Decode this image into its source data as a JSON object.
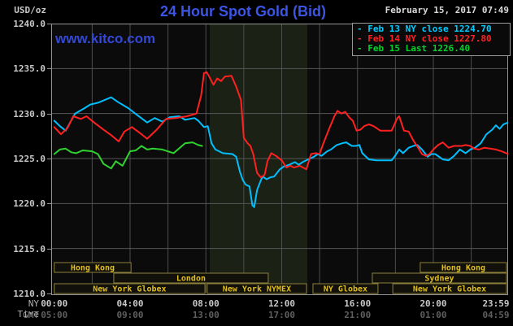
{
  "header": {
    "title": "24 Hour Spot Gold (Bid)",
    "datetime": "February 15, 2017 07:49",
    "watermark": "www.kitco.com",
    "unit_label": "USD/oz"
  },
  "axis_row_labels": {
    "ny_time": "NY Time",
    "gmt": "GMT"
  },
  "colors": {
    "background": "#000000",
    "plot_background": "#0b0b0b",
    "highlight_band": "#1b2114",
    "grid": "#4d4d4d",
    "border": "#969696",
    "title_blue": "#3b55e6",
    "session_border": "#8c7f3c",
    "session_text": "#e0be20",
    "axis_text": "#c8c8c8",
    "gmt_text": "#5f5f5f",
    "feb13_cyan": "#00bfff",
    "feb14_red": "#ff2020",
    "feb15_green": "#2fd32f"
  },
  "legend": {
    "entries": [
      {
        "dash": "-",
        "label": "Feb 13 NY close 1224.70",
        "color": "#00ccff"
      },
      {
        "dash": "-",
        "label": "Feb 14 NY close 1227.80",
        "color": "#ff2222"
      },
      {
        "dash": "-",
        "label": "Feb 15 Last 1226.40",
        "color": "#00d42a"
      }
    ]
  },
  "chart_data": {
    "type": "line",
    "title": "24 Hour Spot Gold (Bid)",
    "xlabel": "NY Time / GMT",
    "ylabel": "USD/oz",
    "ylim": [
      1210.0,
      1240.0
    ],
    "grid": true,
    "legend_position": "top-right",
    "y_axis": {
      "ticks": [
        "1240.0",
        "1235.0",
        "1230.0",
        "1225.0",
        "1220.0",
        "1215.0",
        "1210.0"
      ]
    },
    "x_axis": {
      "ticks": [
        {
          "hour": 0,
          "ny": "00:00",
          "gmt": "05:00"
        },
        {
          "hour": 4,
          "ny": "04:00",
          "gmt": "09:00"
        },
        {
          "hour": 8,
          "ny": "08:00",
          "gmt": "13:00"
        },
        {
          "hour": 12,
          "ny": "12:00",
          "gmt": "17:00"
        },
        {
          "hour": 16,
          "ny": "16:00",
          "gmt": "21:00"
        },
        {
          "hour": 20,
          "ny": "20:00",
          "gmt": "01:00"
        },
        {
          "hour": 23.98,
          "ny": "23:59",
          "gmt": "04:59"
        }
      ]
    },
    "highlight_band_hours": [
      8.2,
      13.35
    ],
    "sessions": [
      {
        "row": 0,
        "label": "Hong Kong",
        "start_hour": 0,
        "end_hour": 4.05
      },
      {
        "row": 0,
        "label": "Hong Kong",
        "start_hour": 19.31,
        "end_hour": 23.86
      },
      {
        "row": 1,
        "label": "London",
        "start_hour": 3.14,
        "end_hour": 11.29
      },
      {
        "row": 1,
        "label": "Sydney",
        "start_hour": 16.78,
        "end_hour": 23.86
      },
      {
        "row": 2,
        "label": "New York Globex",
        "start_hour": 0,
        "end_hour": 7.95
      },
      {
        "row": 2,
        "label": "New York NYMEX",
        "start_hour": 8.07,
        "end_hour": 13.31
      },
      {
        "row": 2,
        "label": "NY Globex",
        "start_hour": 13.65,
        "end_hour": 17.08
      },
      {
        "row": 2,
        "label": "New York Globex",
        "start_hour": 17.86,
        "end_hour": 23.86
      }
    ],
    "series": [
      {
        "name": "Feb 13",
        "legend": "Feb 13 NY close 1224.70",
        "close": 1224.7,
        "color": "#00bfff",
        "points": [
          [
            0,
            1229.2
          ],
          [
            0.3,
            1228.6
          ],
          [
            0.6,
            1228.1
          ],
          [
            1.1,
            1230.0
          ],
          [
            1.6,
            1230.6
          ],
          [
            1.9,
            1231.0
          ],
          [
            2.3,
            1231.2
          ],
          [
            3.0,
            1231.8
          ],
          [
            3.35,
            1231.3
          ],
          [
            3.9,
            1230.6
          ],
          [
            4.4,
            1229.8
          ],
          [
            4.9,
            1229.0
          ],
          [
            5.3,
            1229.5
          ],
          [
            5.7,
            1229.1
          ],
          [
            6.1,
            1229.6
          ],
          [
            6.6,
            1229.7
          ],
          [
            6.9,
            1229.3
          ],
          [
            7.4,
            1229.5
          ],
          [
            7.6,
            1229.2
          ],
          [
            7.9,
            1228.5
          ],
          [
            8.1,
            1228.6
          ],
          [
            8.3,
            1226.7
          ],
          [
            8.5,
            1226.0
          ],
          [
            8.9,
            1225.6
          ],
          [
            9.4,
            1225.5
          ],
          [
            9.6,
            1225.2
          ],
          [
            9.8,
            1223.5
          ],
          [
            9.95,
            1222.6
          ],
          [
            10.1,
            1222.1
          ],
          [
            10.3,
            1221.9
          ],
          [
            10.45,
            1219.8
          ],
          [
            10.55,
            1219.6
          ],
          [
            10.7,
            1221.5
          ],
          [
            10.9,
            1222.6
          ],
          [
            11.0,
            1223.0
          ],
          [
            11.2,
            1222.7
          ],
          [
            11.4,
            1222.9
          ],
          [
            11.6,
            1223.0
          ],
          [
            11.9,
            1223.8
          ],
          [
            12.1,
            1224.1
          ],
          [
            12.4,
            1224.3
          ],
          [
            12.7,
            1224.6
          ],
          [
            12.9,
            1224.3
          ],
          [
            13.1,
            1224.6
          ],
          [
            13.4,
            1224.9
          ],
          [
            13.7,
            1225.2
          ],
          [
            13.9,
            1225.5
          ],
          [
            14.1,
            1225.3
          ],
          [
            14.4,
            1225.8
          ],
          [
            14.6,
            1226.0
          ],
          [
            14.9,
            1226.5
          ],
          [
            15.2,
            1226.7
          ],
          [
            15.4,
            1226.8
          ],
          [
            15.7,
            1226.4
          ],
          [
            15.9,
            1226.4
          ],
          [
            16.1,
            1226.5
          ],
          [
            16.25,
            1225.6
          ],
          [
            16.6,
            1224.9
          ],
          [
            17.0,
            1224.8
          ],
          [
            17.8,
            1224.8
          ],
          [
            17.95,
            1225.2
          ],
          [
            18.2,
            1226.0
          ],
          [
            18.4,
            1225.6
          ],
          [
            18.7,
            1226.2
          ],
          [
            18.95,
            1226.4
          ],
          [
            19.15,
            1226.5
          ],
          [
            19.4,
            1226.0
          ],
          [
            19.7,
            1225.2
          ],
          [
            19.9,
            1225.5
          ],
          [
            20.1,
            1225.5
          ],
          [
            20.5,
            1224.9
          ],
          [
            20.8,
            1224.8
          ],
          [
            21.1,
            1225.3
          ],
          [
            21.4,
            1226.0
          ],
          [
            21.7,
            1225.6
          ],
          [
            21.95,
            1226.0
          ],
          [
            22.2,
            1226.2
          ],
          [
            22.5,
            1226.7
          ],
          [
            22.8,
            1227.7
          ],
          [
            23.1,
            1228.2
          ],
          [
            23.3,
            1228.7
          ],
          [
            23.5,
            1228.3
          ],
          [
            23.7,
            1228.8
          ],
          [
            23.95,
            1229.0
          ]
        ]
      },
      {
        "name": "Feb 14",
        "legend": "Feb 14 NY close 1227.80",
        "close": 1227.8,
        "color": "#ff2020",
        "points": [
          [
            0,
            1228.5
          ],
          [
            0.35,
            1227.7
          ],
          [
            0.7,
            1228.4
          ],
          [
            1.0,
            1229.7
          ],
          [
            1.4,
            1229.4
          ],
          [
            1.7,
            1229.7
          ],
          [
            2.1,
            1229.0
          ],
          [
            2.6,
            1228.2
          ],
          [
            3.0,
            1227.6
          ],
          [
            3.4,
            1226.9
          ],
          [
            3.7,
            1228.0
          ],
          [
            4.1,
            1228.5
          ],
          [
            4.6,
            1227.7
          ],
          [
            4.9,
            1227.2
          ],
          [
            5.4,
            1228.2
          ],
          [
            5.9,
            1229.4
          ],
          [
            6.4,
            1229.5
          ],
          [
            7.0,
            1229.7
          ],
          [
            7.5,
            1230.0
          ],
          [
            7.75,
            1232.0
          ],
          [
            7.9,
            1234.5
          ],
          [
            8.05,
            1234.6
          ],
          [
            8.4,
            1233.2
          ],
          [
            8.6,
            1233.9
          ],
          [
            8.8,
            1233.6
          ],
          [
            9.0,
            1234.1
          ],
          [
            9.35,
            1234.2
          ],
          [
            9.6,
            1233.0
          ],
          [
            9.85,
            1231.5
          ],
          [
            10.0,
            1227.3
          ],
          [
            10.2,
            1226.7
          ],
          [
            10.35,
            1226.4
          ],
          [
            10.5,
            1225.5
          ],
          [
            10.7,
            1223.4
          ],
          [
            10.9,
            1222.9
          ],
          [
            11.1,
            1223.2
          ],
          [
            11.25,
            1224.7
          ],
          [
            11.45,
            1225.6
          ],
          [
            11.7,
            1225.3
          ],
          [
            12.0,
            1224.8
          ],
          [
            12.25,
            1224.0
          ],
          [
            12.45,
            1224.2
          ],
          [
            12.65,
            1224.0
          ],
          [
            12.95,
            1224.2
          ],
          [
            13.3,
            1223.8
          ],
          [
            13.55,
            1225.5
          ],
          [
            13.8,
            1225.6
          ],
          [
            14.0,
            1225.5
          ],
          [
            14.2,
            1226.7
          ],
          [
            14.5,
            1228.3
          ],
          [
            14.8,
            1229.8
          ],
          [
            14.95,
            1230.3
          ],
          [
            15.15,
            1230.0
          ],
          [
            15.35,
            1230.2
          ],
          [
            15.55,
            1229.6
          ],
          [
            15.75,
            1229.2
          ],
          [
            15.95,
            1228.1
          ],
          [
            16.15,
            1228.2
          ],
          [
            16.35,
            1228.6
          ],
          [
            16.6,
            1228.8
          ],
          [
            16.85,
            1228.6
          ],
          [
            17.2,
            1228.1
          ],
          [
            17.8,
            1228.1
          ],
          [
            18.1,
            1229.5
          ],
          [
            18.2,
            1229.7
          ],
          [
            18.45,
            1228.1
          ],
          [
            18.7,
            1228.0
          ],
          [
            18.95,
            1227.0
          ],
          [
            19.2,
            1226.2
          ],
          [
            19.4,
            1225.5
          ],
          [
            19.6,
            1225.3
          ],
          [
            19.8,
            1225.5
          ],
          [
            20.0,
            1226.0
          ],
          [
            20.25,
            1226.5
          ],
          [
            20.5,
            1226.8
          ],
          [
            20.8,
            1226.2
          ],
          [
            21.1,
            1226.4
          ],
          [
            21.5,
            1226.4
          ],
          [
            21.7,
            1226.5
          ],
          [
            21.95,
            1226.4
          ],
          [
            22.15,
            1226.1
          ],
          [
            22.4,
            1226.0
          ],
          [
            22.7,
            1226.2
          ],
          [
            23.0,
            1226.1
          ],
          [
            23.3,
            1226.0
          ],
          [
            23.6,
            1225.8
          ],
          [
            23.95,
            1225.5
          ]
        ]
      },
      {
        "name": "Feb 15",
        "legend": "Feb 15 Last 1226.40",
        "close": 1226.4,
        "color": "#2fd32f",
        "points": [
          [
            0,
            1225.5
          ],
          [
            0.3,
            1226.0
          ],
          [
            0.6,
            1226.1
          ],
          [
            0.9,
            1225.7
          ],
          [
            1.15,
            1225.6
          ],
          [
            1.5,
            1225.9
          ],
          [
            2.0,
            1225.8
          ],
          [
            2.3,
            1225.5
          ],
          [
            2.6,
            1224.4
          ],
          [
            3.0,
            1223.9
          ],
          [
            3.25,
            1224.7
          ],
          [
            3.6,
            1224.2
          ],
          [
            4.0,
            1225.8
          ],
          [
            4.3,
            1225.9
          ],
          [
            4.6,
            1226.4
          ],
          [
            4.9,
            1226.0
          ],
          [
            5.2,
            1226.1
          ],
          [
            5.7,
            1226.0
          ],
          [
            6.3,
            1225.6
          ],
          [
            6.9,
            1226.7
          ],
          [
            7.3,
            1226.8
          ],
          [
            7.6,
            1226.5
          ],
          [
            7.8,
            1226.4
          ]
        ]
      }
    ]
  }
}
